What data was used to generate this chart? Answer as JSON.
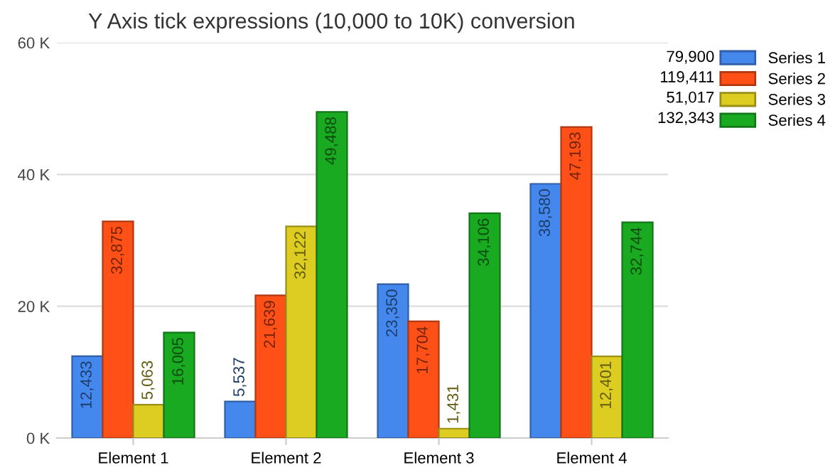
{
  "chart_data": {
    "type": "bar",
    "title": "Y Axis tick expressions (10,000 to 10K) conversion",
    "categories": [
      "Element 1",
      "Element 2",
      "Element 3",
      "Element 4"
    ],
    "series": [
      {
        "name": "Series 1",
        "color": "#4488ee",
        "values": [
          12433,
          5537,
          23350,
          38580
        ],
        "value_labels": [
          "12,433",
          "5,537",
          "23,350",
          "38,580"
        ]
      },
      {
        "name": "Series 2",
        "color": "#ff5018",
        "values": [
          32875,
          21639,
          17704,
          47193
        ],
        "value_labels": [
          "32,875",
          "21,639",
          "17,704",
          "47,193"
        ]
      },
      {
        "name": "Series 3",
        "color": "#ddcc22",
        "values": [
          5063,
          32122,
          1431,
          12401
        ],
        "value_labels": [
          "5,063",
          "32,122",
          "1,431",
          "12,401"
        ]
      },
      {
        "name": "Series 4",
        "color": "#1aaa22",
        "values": [
          16005,
          49488,
          34106,
          32744
        ],
        "value_labels": [
          "16,005",
          "49,488",
          "34,106",
          "32,744"
        ]
      }
    ],
    "ylim": [
      0,
      60000
    ],
    "yticks": [
      {
        "value": 0,
        "label": "0 K"
      },
      {
        "value": 20000,
        "label": "20 K"
      },
      {
        "value": 40000,
        "label": "40 K"
      },
      {
        "value": 60000,
        "label": "60 K"
      }
    ],
    "grid": "y",
    "legend": "top right",
    "annotations": [
      "79,900",
      "119,411",
      "51,017",
      "132,343"
    ]
  }
}
